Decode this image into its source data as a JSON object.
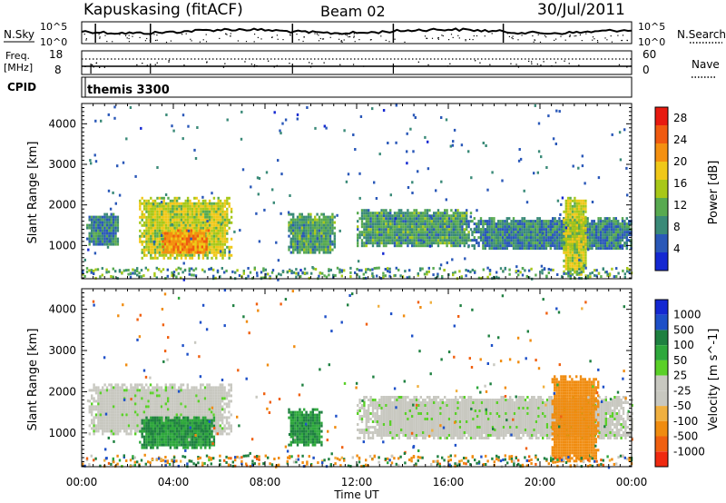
{
  "header": {
    "station": "Kapuskasing (fitACF)",
    "beam": "Beam 02",
    "date": "30/Jul/2011"
  },
  "status_panels": {
    "nsky_label": "N.Sky",
    "nsearch_label": "N.Search",
    "freq_label_top": "Freq.",
    "freq_label_unit": "[MHz]",
    "nave_label": "Nave",
    "cpid_label": "CPID",
    "cpid_value": "themis 3300",
    "noise_tick_top": "10^5",
    "noise_tick_bottom": "10^0",
    "freq_tick_top": "18",
    "freq_tick_bottom": "8",
    "nave_tick_top": "60",
    "nave_tick_bottom": "0"
  },
  "chart_data": [
    {
      "type": "heatmap",
      "name": "power",
      "title": "",
      "xlabel": "",
      "ylabel": "Slant Range [km]",
      "xlim": [
        0,
        24
      ],
      "ylim": [
        180,
        4500
      ],
      "y_ticks": [
        "1000",
        "2000",
        "3000",
        "4000"
      ],
      "colorbar_label": "Power [dB]",
      "colorbar_ticks": [
        "4",
        "8",
        "12",
        "16",
        "20",
        "24",
        "28"
      ],
      "colorbar_range": [
        0,
        30
      ],
      "colorbar_colors": [
        "#1428d2",
        "#2a58b8",
        "#3a8a78",
        "#58aa50",
        "#a8c818",
        "#f0c818",
        "#f49010",
        "#f05a10",
        "#e81a10"
      ],
      "regions": [
        {
          "t_start": 0.2,
          "t_end": 1.6,
          "r_min": 1000,
          "r_max": 1800,
          "level_db": 8
        },
        {
          "t_start": 2.5,
          "t_end": 6.5,
          "r_min": 700,
          "r_max": 2200,
          "level_db": 16
        },
        {
          "t_start": 3.5,
          "t_end": 5.5,
          "r_min": 800,
          "r_max": 1400,
          "level_db": 22
        },
        {
          "t_start": 9.0,
          "t_end": 11.0,
          "r_min": 800,
          "r_max": 1800,
          "level_db": 10
        },
        {
          "t_start": 12.0,
          "t_end": 17.0,
          "r_min": 1000,
          "r_max": 1900,
          "level_db": 10
        },
        {
          "t_start": 17.0,
          "t_end": 24.0,
          "r_min": 900,
          "r_max": 1700,
          "level_db": 8
        },
        {
          "t_start": 21.0,
          "t_end": 22.0,
          "r_min": 300,
          "r_max": 2200,
          "level_db": 16
        }
      ]
    },
    {
      "type": "heatmap",
      "name": "velocity",
      "title": "",
      "xlabel": "Time UT",
      "ylabel": "Slant Range [km]",
      "xlim": [
        0,
        24
      ],
      "ylim": [
        180,
        4500
      ],
      "x_ticks": [
        "00:00",
        "04:00",
        "08:00",
        "12:00",
        "16:00",
        "20:00",
        "00:00"
      ],
      "y_ticks": [
        "1000",
        "2000",
        "3000",
        "4000"
      ],
      "colorbar_label": "Velocity [m s^-1]",
      "colorbar_ticks": [
        "1000",
        "500",
        "100",
        "50",
        "25",
        "-25",
        "-50",
        "-100",
        "-500",
        "-1000"
      ],
      "colorbar_colors": [
        "#1428d2",
        "#1e50c8",
        "#1e8040",
        "#2ea83c",
        "#5ad028",
        "#c8c8c0",
        "#c8c8c0",
        "#f0b040",
        "#f08c10",
        "#f06010",
        "#f02a10"
      ],
      "regions": [
        {
          "t_start": 0.3,
          "t_end": 6.5,
          "r_min": 1000,
          "r_max": 2200,
          "velocity": 0
        },
        {
          "t_start": 2.5,
          "t_end": 5.8,
          "r_min": 650,
          "r_max": 1400,
          "velocity": 100
        },
        {
          "t_start": 9.0,
          "t_end": 10.5,
          "r_min": 700,
          "r_max": 1600,
          "velocity": 100
        },
        {
          "t_start": 12.0,
          "t_end": 24.0,
          "r_min": 900,
          "r_max": 1900,
          "velocity": 0
        },
        {
          "t_start": 20.5,
          "t_end": 22.5,
          "r_min": 300,
          "r_max": 2400,
          "velocity": -300
        }
      ]
    }
  ]
}
